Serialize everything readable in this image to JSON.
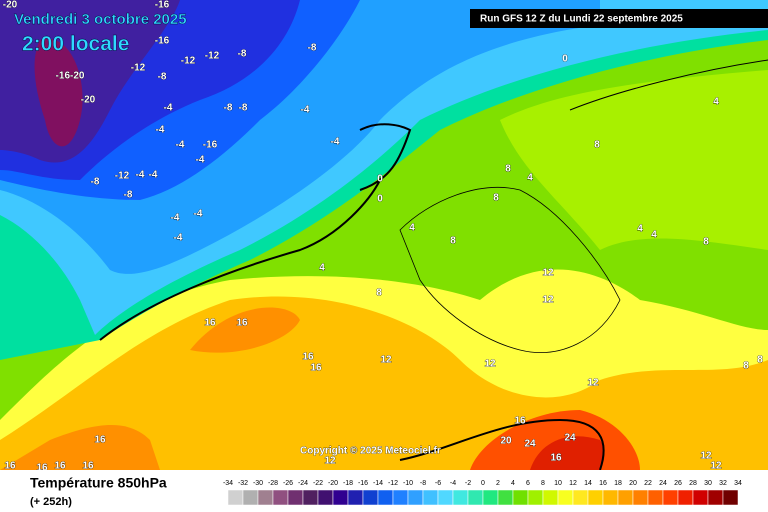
{
  "header": {
    "date": "Vendredi 3 octobre 2025",
    "time": "2:00 locale",
    "run": "Run GFS 12 Z du Lundi 22 septembre 2025"
  },
  "map": {
    "copyright": "Copyright © 2025 Meteociel.fr",
    "labels": [
      "-20",
      "-16",
      "-16",
      "-12",
      "-12",
      "-12",
      "-8",
      "-8",
      "-16-20",
      "-20",
      "-8",
      "-8",
      "-8",
      "-4",
      "-4",
      "-4",
      "-4",
      "-4",
      "-16",
      "-8",
      "-12",
      "-4",
      "-4",
      "-8",
      "-4",
      "-4",
      "-4",
      "-4",
      "0",
      "0",
      "0",
      "4",
      "4",
      "4",
      "8",
      "8",
      "8",
      "8",
      "8",
      "4",
      "4",
      "4",
      "8",
      "12",
      "12",
      "12",
      "12",
      "16",
      "16",
      "16",
      "16",
      "12",
      "12",
      "16",
      "20",
      "24",
      "24",
      "16",
      "16",
      "16",
      "16",
      "16",
      "16",
      "12",
      "12",
      "8",
      "8"
    ]
  },
  "footer": {
    "title": "Température 850hPa",
    "subtitle": "(+ 252h)",
    "scale": [
      -34,
      -32,
      -30,
      -28,
      -26,
      -24,
      -22,
      -20,
      -18,
      -16,
      -14,
      -12,
      -10,
      -8,
      -6,
      -4,
      -2,
      0,
      2,
      4,
      6,
      8,
      10,
      12,
      14,
      16,
      18,
      20,
      22,
      24,
      26,
      28,
      30,
      32,
      34
    ]
  }
}
